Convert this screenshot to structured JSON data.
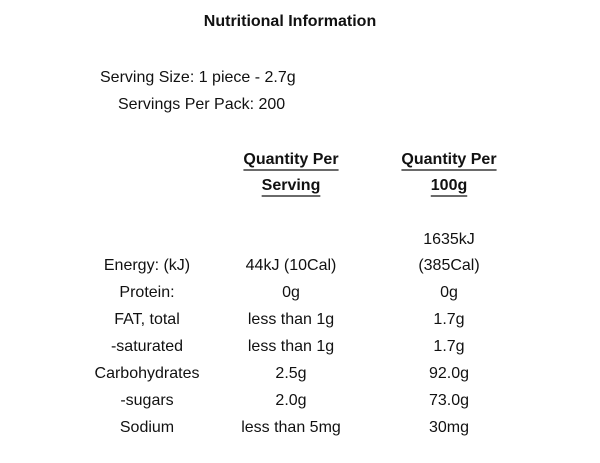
{
  "title": "Nutritional Information",
  "serving_info": [
    "Serving Size: 1 piece - 2.7g",
    "Servings Per Pack: 200"
  ],
  "table": {
    "headers": [
      [
        "Quantity Per",
        "Serving"
      ],
      [
        "Quantity Per",
        "100g"
      ]
    ],
    "rows": [
      [
        "Energy: (kJ)",
        "44kJ (10Cal)",
        [
          "1635kJ",
          "(385Cal)"
        ]
      ],
      [
        "Protein:",
        "0g",
        "0g"
      ],
      [
        "FAT, total",
        "less than 1g",
        "1.7g"
      ],
      [
        "-saturated",
        "less than 1g",
        "1.7g"
      ],
      [
        "Carbohydrates",
        "2.5g",
        "92.0g"
      ],
      [
        "-sugars",
        "2.0g",
        "73.0g"
      ],
      [
        "Sodium",
        "less than 5mg",
        "30mg"
      ]
    ]
  }
}
